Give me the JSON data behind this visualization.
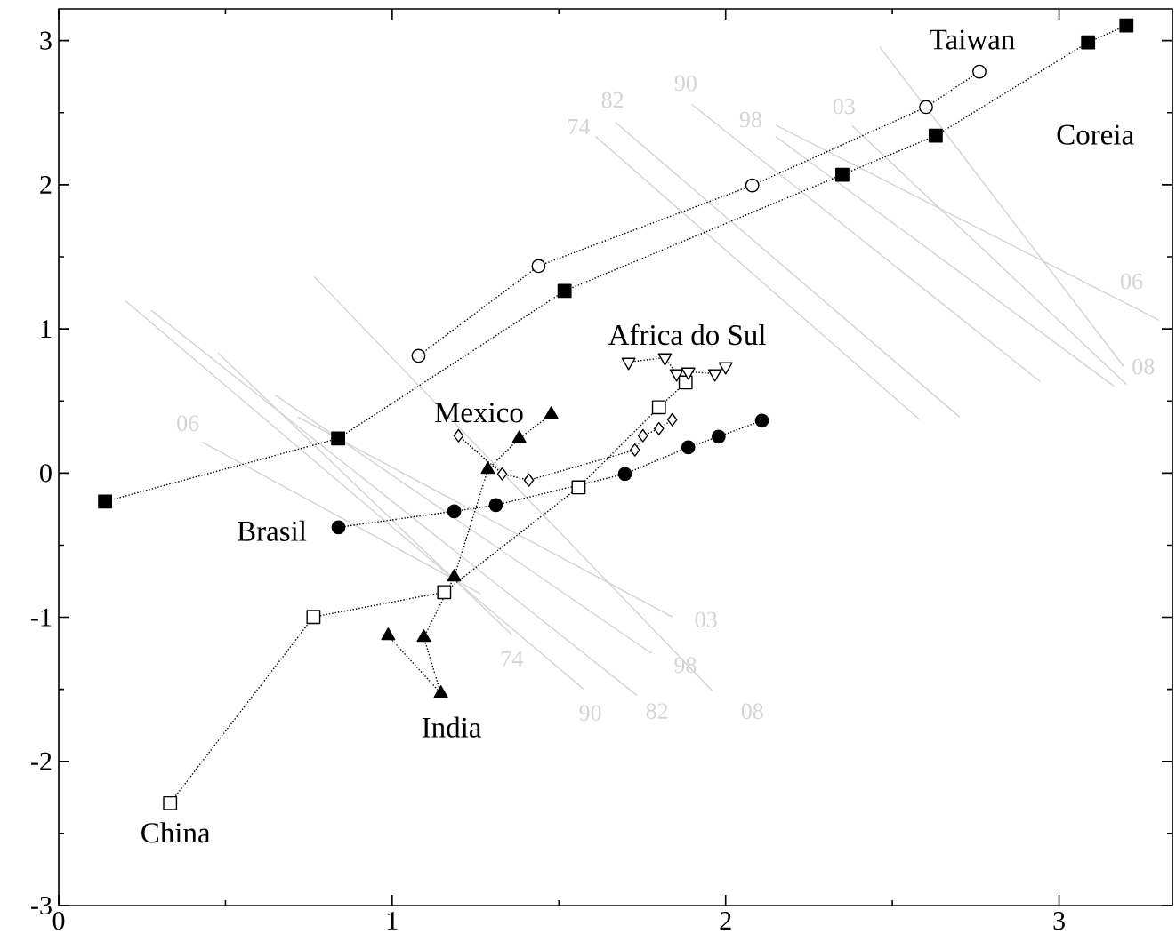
{
  "chart_data": {
    "type": "line",
    "xlim": [
      0,
      3.34
    ],
    "ylim": [
      -3,
      3.22
    ],
    "xticks": [
      0,
      {
        "value": 0.5,
        "label": null
      },
      1,
      {
        "value": 1.5,
        "label": null
      },
      2,
      {
        "value": 2.5,
        "label": null
      },
      3
    ],
    "yticks": [
      -3,
      {
        "value": -2.5,
        "label": null
      },
      -2,
      {
        "value": -1.5,
        "label": null
      },
      -1,
      {
        "value": -0.5,
        "label": null
      },
      0,
      {
        "value": 0.5,
        "label": null
      },
      1,
      {
        "value": 1.5,
        "label": null
      },
      2,
      {
        "value": 2.5,
        "label": null
      },
      3
    ],
    "grid": false,
    "series": [
      {
        "name": "74",
        "color": "#d3d3d3",
        "marker": "none",
        "line_style": "solid",
        "x": [
          1.61,
          2.582
        ],
        "values": [
          2.335,
          0.37
        ]
      },
      {
        "name": "82",
        "color": "#d3d3d3",
        "marker": "none",
        "line_style": "solid",
        "x": [
          1.669,
          2.702
        ],
        "values": [
          2.434,
          0.388
        ]
      },
      {
        "name": "90",
        "color": "#d3d3d3",
        "marker": "none",
        "line_style": "solid",
        "x": [
          1.899,
          2.943
        ],
        "values": [
          2.557,
          0.635
        ]
      },
      {
        "name": "98",
        "color": "#d3d3d3",
        "marker": "none",
        "line_style": "solid",
        "x": [
          2.15,
          3.164
        ],
        "values": [
          2.335,
          0.604
        ]
      },
      {
        "name": "06",
        "color": "#d3d3d3",
        "marker": "none",
        "line_style": "solid",
        "x": [
          2.15,
          3.3
        ],
        "values": [
          2.415,
          1.06
        ]
      },
      {
        "name": "03",
        "color": "#d3d3d3",
        "marker": "none",
        "line_style": "solid",
        "x": [
          2.379,
          3.202
        ],
        "values": [
          2.409,
          0.616
        ]
      },
      {
        "name": "08",
        "color": "#d3d3d3",
        "marker": "none",
        "line_style": "solid",
        "x": [
          2.462,
          3.194
        ],
        "values": [
          2.957,
          0.739
        ]
      },
      {
        "name": "74",
        "color": "#d3d3d3",
        "marker": "none",
        "line_style": "solid",
        "x": [
          0.478,
          1.359
        ],
        "values": [
          0.832,
          -1.121
        ]
      },
      {
        "name": "90",
        "color": "#d3d3d3",
        "marker": "none",
        "line_style": "solid",
        "x": [
          0.2,
          1.573
        ],
        "values": [
          1.195,
          -1.497
        ]
      },
      {
        "name": "82",
        "color": "#d3d3d3",
        "marker": "none",
        "line_style": "solid",
        "x": [
          0.278,
          1.733
        ],
        "values": [
          1.128,
          -1.54
        ]
      },
      {
        "name": "98",
        "color": "#d3d3d3",
        "marker": "none",
        "line_style": "solid",
        "x": [
          0.649,
          1.778
        ],
        "values": [
          0.542,
          -1.251
        ]
      },
      {
        "name": "03",
        "color": "#d3d3d3",
        "marker": "none",
        "line_style": "solid",
        "x": [
          0.718,
          1.84
        ],
        "values": [
          0.388,
          -0.998
        ]
      },
      {
        "name": "08",
        "color": "#d3d3d3",
        "marker": "none",
        "line_style": "solid",
        "x": [
          0.766,
          1.96
        ],
        "values": [
          1.362,
          -1.51
        ]
      },
      {
        "name": "06",
        "color": "#d3d3d3",
        "marker": "none",
        "line_style": "solid",
        "x": [
          0.43,
          1.266
        ],
        "values": [
          0.216,
          -0.838
        ]
      },
      {
        "name": "Coreia",
        "color": "#000000",
        "marker": "square",
        "line_style": "dotted",
        "x": [
          0.139,
          0.838,
          1.517,
          2.35,
          2.63,
          3.087,
          3.202
        ],
        "values": [
          -0.197,
          0.24,
          1.263,
          2.07,
          2.341,
          2.988,
          3.105
        ]
      },
      {
        "name": "Taiwan",
        "color": "#000000",
        "marker": "circle",
        "line_style": "dotted",
        "x": [
          1.079,
          1.439,
          2.08,
          2.601,
          2.761
        ],
        "values": [
          0.813,
          1.436,
          1.996,
          2.539,
          2.785
        ]
      },
      {
        "name": "Brasil",
        "color": "#000000",
        "marker": "circle",
        "line_style": "dotted",
        "x": [
          0.839,
          1.186,
          1.311,
          1.698,
          1.888,
          1.979,
          2.109
        ],
        "values": [
          -0.376,
          -0.265,
          -0.222,
          -0.006,
          0.179,
          0.253,
          0.364
        ]
      },
      {
        "name": "China",
        "color": "#000000",
        "marker": "square",
        "line_style": "dotted",
        "x": [
          0.334,
          0.764,
          1.156,
          1.559,
          1.8,
          1.88
        ],
        "values": [
          -2.29,
          -0.998,
          -0.826,
          -0.099,
          0.456,
          0.628
        ]
      },
      {
        "name": "India",
        "color": "#000000",
        "marker": "triangle",
        "line_style": "dotted",
        "x": [
          0.988,
          1.146,
          1.095,
          1.186,
          1.287,
          1.381,
          1.477
        ],
        "values": [
          -1.128,
          -1.528,
          -1.14,
          -0.721,
          0.025,
          0.24,
          0.407
        ]
      },
      {
        "name": "Mexico",
        "color": "#000000",
        "marker": "diamond",
        "line_style": "dotted",
        "x": [
          1.199,
          1.33,
          1.41,
          1.728,
          1.752,
          1.8,
          1.84
        ],
        "values": [
          0.259,
          -0.006,
          -0.049,
          0.16,
          0.259,
          0.308,
          0.37
        ]
      },
      {
        "name": "Africa do Sul",
        "color": "#000000",
        "marker": "triangle_down",
        "line_style": "dotted",
        "x": [
          1.709,
          1.818,
          1.853,
          1.888,
          1.968,
          2.0
        ],
        "values": [
          0.77,
          0.801,
          0.69,
          0.702,
          0.69,
          0.739
        ]
      }
    ]
  }
}
